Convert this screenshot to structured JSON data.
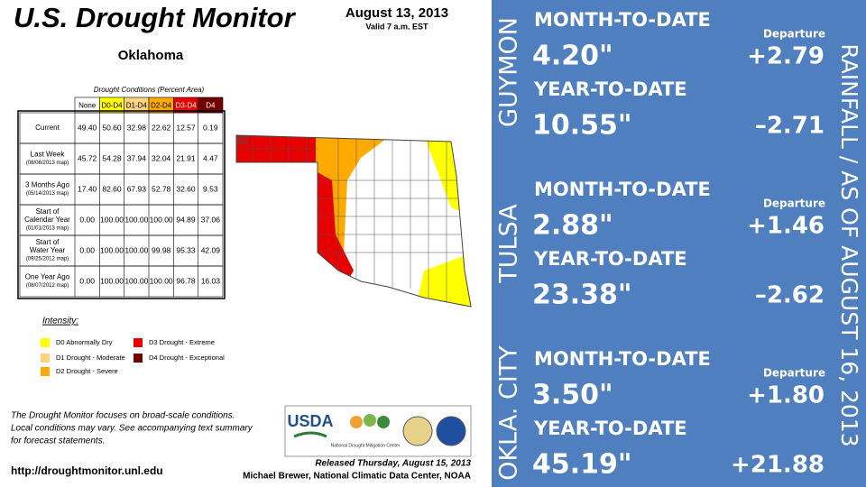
{
  "drought_monitor": {
    "title": "U.S. Drought Monitor",
    "date": "August 13, 2013",
    "valid": "Valid 7 a.m. EST",
    "state": "Oklahoma",
    "table": {
      "caption": "Drought Conditions (Percent Area)",
      "headers": [
        "None",
        "D0-D4",
        "D1-D4",
        "D2-D4",
        "D3-D4",
        "D4"
      ],
      "rows": [
        {
          "label": [
            "Current"
          ],
          "values": [
            "49.40",
            "50.60",
            "32.98",
            "22.62",
            "12.57",
            "0.19"
          ]
        },
        {
          "label": [
            "Last Week",
            "(08/06/2013 map)"
          ],
          "values": [
            "45.72",
            "54.28",
            "37.94",
            "32.04",
            "21.91",
            "4.47"
          ]
        },
        {
          "label": [
            "3 Months Ago",
            "(05/14/2013 map)"
          ],
          "values": [
            "17.40",
            "82.60",
            "67.93",
            "52.78",
            "32.60",
            "9.53"
          ]
        },
        {
          "label": [
            "Start of",
            "Calendar Year",
            "(01/01/2013 map)"
          ],
          "values": [
            "0.00",
            "100.00",
            "100.00",
            "100.00",
            "94.89",
            "37.06"
          ]
        },
        {
          "label": [
            "Start of",
            "Water Year",
            "(09/25/2012 map)"
          ],
          "values": [
            "0.00",
            "100.00",
            "100.00",
            "99.98",
            "95.33",
            "42.09"
          ]
        },
        {
          "label": [
            "One Year Ago",
            "(08/07/2012 map)"
          ],
          "values": [
            "0.00",
            "100.00",
            "100.00",
            "100.00",
            "96.78",
            "16.03"
          ]
        }
      ]
    },
    "intensity": {
      "label": "Intensity:",
      "items": [
        "D0 Abnormally Dry",
        "D1 Drought - Moderate",
        "D2 Drought - Severe",
        "D3 Drought - Extreme",
        "D4 Drought - Exceptional"
      ]
    },
    "note": [
      "The Drought Monitor focuses on broad-scale conditions.",
      "Local conditions may vary. See accompanying text summary",
      "for forecast statements."
    ],
    "url": "http://droughtmonitor.unl.edu",
    "released": "Released Thursday, August 15, 2013",
    "credit": "Michael Brewer, National Climatic Data Center, NOAA",
    "logos": [
      "USDA",
      "National Drought Mitigation Center"
    ]
  },
  "rainfall": {
    "heading": "RAINFALL / AS OF AUGUST 16, 2013",
    "cities": [
      {
        "name": "GUYMON",
        "mtd_label": "MONTH-TO-DATE",
        "departure_label": "Departure",
        "mtd": "4.20\"",
        "mtd_departure": "+2.79",
        "ytd_label": "YEAR-TO-DATE",
        "ytd": "10.55\"",
        "ytd_departure": "–2.71"
      },
      {
        "name": "TULSA",
        "mtd_label": "MONTH-TO-DATE",
        "departure_label": "Departure",
        "mtd": "2.88\"",
        "mtd_departure": "+1.46",
        "ytd_label": "YEAR-TO-DATE",
        "ytd": "23.38\"",
        "ytd_departure": "–2.62"
      },
      {
        "name": "OKLA. CITY",
        "mtd_label": "MONTH-TO-DATE",
        "departure_label": "Departure",
        "mtd": "3.50\"",
        "mtd_departure": "+1.80",
        "ytd_label": "YEAR-TO-DATE",
        "ytd": "45.19\"",
        "ytd_departure": "+21.88"
      }
    ]
  }
}
